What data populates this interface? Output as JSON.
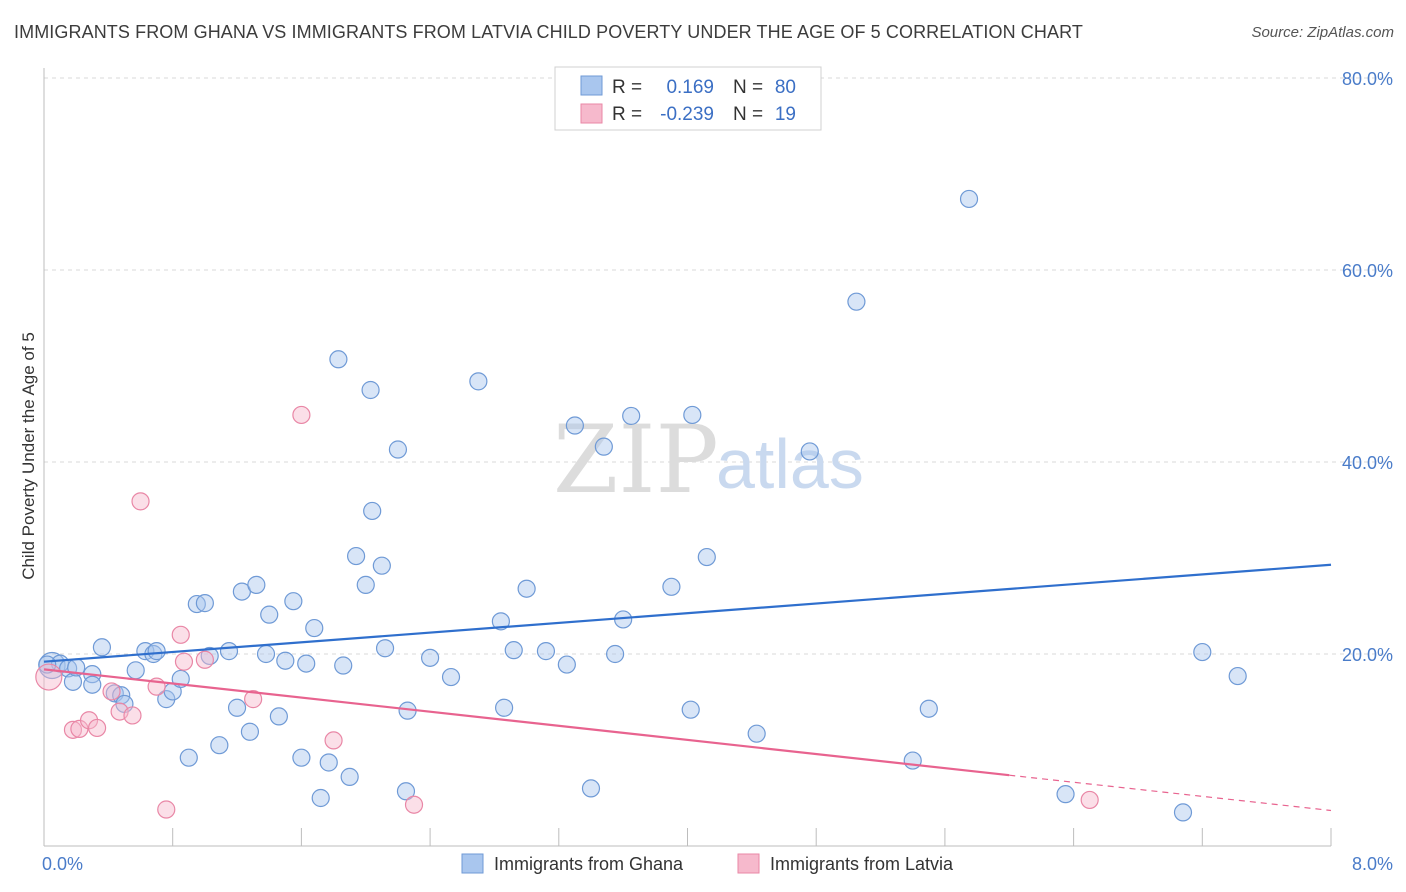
{
  "title": "IMMIGRANTS FROM GHANA VS IMMIGRANTS FROM LATVIA CHILD POVERTY UNDER THE AGE OF 5 CORRELATION CHART",
  "source": "Source: ZipAtlas.com",
  "watermark": {
    "zip": "ZIP",
    "atlas": "atlas"
  },
  "colors": {
    "ghana_fill": "#a9c6ee",
    "ghana_stroke": "#6f9ad6",
    "ghana_line": "#2f6fcd",
    "latvia_fill": "#f6b9cc",
    "latvia_stroke": "#e987a6",
    "latvia_line": "#e8638f",
    "grid": "#d9d9d9",
    "axis_text": "#4a7cc9"
  },
  "legend": {
    "rows": [
      {
        "r_label": "R =",
        "r_value": "0.169",
        "n_label": "N =",
        "n_value": "80"
      },
      {
        "r_label": "R =",
        "r_value": "-0.239",
        "n_label": "N =",
        "n_value": "19"
      }
    ]
  },
  "bottom_legend": {
    "ghana": "Immigrants from Ghana",
    "latvia": "Immigrants from Latvia"
  },
  "chart_data": {
    "type": "scatter",
    "title": "IMMIGRANTS FROM GHANA VS IMMIGRANTS FROM LATVIA CHILD POVERTY UNDER THE AGE OF 5 CORRELATION CHART",
    "xlabel": "",
    "ylabel": "Child Poverty Under the Age of 5",
    "xlim": [
      0,
      8
    ],
    "ylim": [
      0,
      80
    ],
    "x_ticks": [
      "0.0%",
      "8.0%"
    ],
    "y_ticks": [
      "20.0%",
      "40.0%",
      "60.0%",
      "80.0%"
    ],
    "y_tick_values": [
      20,
      40,
      60,
      80
    ],
    "grid": true,
    "legend_position": "top-center",
    "series": [
      {
        "name": "Immigrants from Ghana",
        "R": 0.169,
        "N": 80,
        "trend": {
          "x": [
            0,
            8
          ],
          "y": [
            19.2,
            29.3
          ],
          "dashed_from": null
        },
        "points": [
          [
            0.05,
            18.8
          ],
          [
            0.1,
            19.0
          ],
          [
            0.15,
            18.5
          ],
          [
            0.18,
            17.1
          ],
          [
            0.3,
            17.9
          ],
          [
            0.3,
            16.8
          ],
          [
            0.36,
            20.7
          ],
          [
            0.44,
            15.9
          ],
          [
            0.48,
            15.7
          ],
          [
            0.5,
            14.8
          ],
          [
            0.57,
            18.3
          ],
          [
            0.63,
            20.3
          ],
          [
            0.68,
            20.0
          ],
          [
            0.7,
            20.3
          ],
          [
            0.76,
            15.3
          ],
          [
            0.8,
            16.1
          ],
          [
            0.85,
            17.4
          ],
          [
            0.9,
            9.2
          ],
          [
            0.95,
            25.2
          ],
          [
            1.0,
            25.3
          ],
          [
            1.03,
            19.8
          ],
          [
            1.09,
            10.5
          ],
          [
            1.15,
            20.3
          ],
          [
            1.2,
            14.4
          ],
          [
            1.23,
            26.5
          ],
          [
            1.28,
            11.9
          ],
          [
            1.32,
            27.2
          ],
          [
            1.38,
            20.0
          ],
          [
            1.4,
            24.1
          ],
          [
            1.46,
            13.5
          ],
          [
            1.5,
            19.3
          ],
          [
            1.55,
            25.5
          ],
          [
            1.6,
            9.2
          ],
          [
            1.63,
            19.0
          ],
          [
            1.68,
            22.7
          ],
          [
            1.72,
            5.0
          ],
          [
            1.77,
            8.7
          ],
          [
            1.83,
            50.7
          ],
          [
            1.86,
            18.8
          ],
          [
            1.9,
            7.2
          ],
          [
            1.94,
            30.2
          ],
          [
            2.0,
            27.2
          ],
          [
            2.03,
            47.5
          ],
          [
            2.04,
            34.9
          ],
          [
            2.1,
            29.2
          ],
          [
            2.12,
            20.6
          ],
          [
            2.2,
            41.3
          ],
          [
            2.25,
            5.7
          ],
          [
            2.26,
            14.1
          ],
          [
            2.4,
            19.6
          ],
          [
            2.53,
            17.6
          ],
          [
            2.7,
            48.4
          ],
          [
            2.84,
            23.4
          ],
          [
            2.86,
            14.4
          ],
          [
            2.92,
            20.4
          ],
          [
            3.0,
            26.8
          ],
          [
            3.12,
            20.3
          ],
          [
            3.25,
            18.9
          ],
          [
            3.3,
            43.8
          ],
          [
            3.4,
            6.0
          ],
          [
            3.48,
            41.6
          ],
          [
            3.55,
            20.0
          ],
          [
            3.6,
            23.6
          ],
          [
            3.65,
            44.8
          ],
          [
            3.9,
            27.0
          ],
          [
            4.02,
            14.2
          ],
          [
            4.03,
            44.9
          ],
          [
            4.12,
            30.1
          ],
          [
            4.43,
            11.7
          ],
          [
            4.76,
            41.1
          ],
          [
            5.05,
            56.7
          ],
          [
            5.4,
            8.9
          ],
          [
            5.5,
            14.3
          ],
          [
            5.75,
            67.4
          ],
          [
            6.35,
            5.4
          ],
          [
            7.08,
            3.5
          ],
          [
            7.2,
            20.2
          ],
          [
            7.42,
            17.7
          ],
          [
            0.02,
            18.9
          ],
          [
            0.2,
            18.6
          ]
        ]
      },
      {
        "name": "Immigrants from Latvia",
        "R": -0.239,
        "N": 19,
        "trend": {
          "x": [
            0,
            8
          ],
          "y": [
            18.4,
            3.7
          ],
          "dashed_from": 6.0
        },
        "points": [
          [
            0.03,
            17.6
          ],
          [
            0.18,
            12.1
          ],
          [
            0.22,
            12.2
          ],
          [
            0.28,
            13.1
          ],
          [
            0.33,
            12.3
          ],
          [
            0.42,
            16.1
          ],
          [
            0.47,
            14.0
          ],
          [
            0.55,
            13.6
          ],
          [
            0.6,
            35.9
          ],
          [
            0.7,
            16.6
          ],
          [
            0.76,
            3.8
          ],
          [
            0.85,
            22.0
          ],
          [
            0.87,
            19.2
          ],
          [
            1.0,
            19.4
          ],
          [
            1.3,
            15.3
          ],
          [
            1.6,
            44.9
          ],
          [
            1.8,
            11.0
          ],
          [
            2.3,
            4.3
          ],
          [
            6.5,
            4.8
          ]
        ]
      }
    ]
  }
}
